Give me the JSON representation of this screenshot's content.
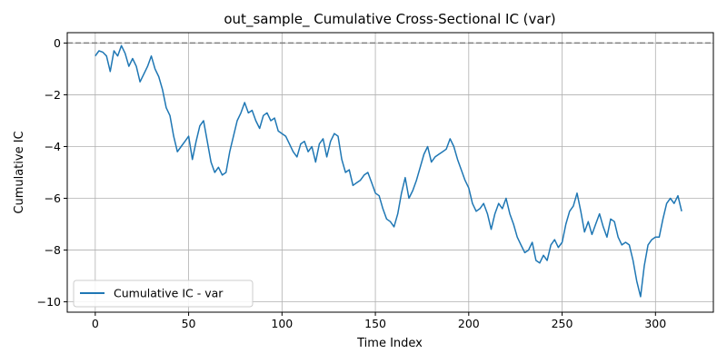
{
  "chart_data": {
    "type": "line",
    "title": "out_sample_ Cumulative Cross-Sectional IC (var)",
    "xlabel": "Time Index",
    "ylabel": "Cumulative IC",
    "xlim": [
      -15,
      331
    ],
    "ylim": [
      -10.4,
      0.4
    ],
    "xticks": [
      0,
      50,
      100,
      150,
      200,
      250,
      300
    ],
    "yticks": [
      0,
      -2,
      -4,
      -6,
      -8,
      -10
    ],
    "grid": true,
    "legend": "lower-left",
    "reference_line": {
      "y": 0,
      "style": "dashed",
      "color": "#808080"
    },
    "series": [
      {
        "name": "Cumulative IC - var",
        "color": "#1f77b4",
        "x": [
          0,
          2,
          4,
          6,
          8,
          10,
          12,
          14,
          16,
          18,
          20,
          22,
          24,
          26,
          28,
          30,
          32,
          34,
          36,
          38,
          40,
          42,
          44,
          46,
          48,
          50,
          52,
          54,
          56,
          58,
          60,
          62,
          64,
          66,
          68,
          70,
          72,
          74,
          76,
          78,
          80,
          82,
          84,
          86,
          88,
          90,
          92,
          94,
          96,
          98,
          100,
          102,
          104,
          106,
          108,
          110,
          112,
          114,
          116,
          118,
          120,
          122,
          124,
          126,
          128,
          130,
          132,
          134,
          136,
          138,
          140,
          142,
          144,
          146,
          148,
          150,
          152,
          154,
          156,
          158,
          160,
          162,
          164,
          166,
          168,
          170,
          172,
          174,
          176,
          178,
          180,
          182,
          184,
          186,
          188,
          190,
          192,
          194,
          196,
          198,
          200,
          202,
          204,
          206,
          208,
          210,
          212,
          214,
          216,
          218,
          220,
          222,
          224,
          226,
          228,
          230,
          232,
          234,
          236,
          238,
          240,
          242,
          244,
          246,
          248,
          250,
          252,
          254,
          256,
          258,
          260,
          262,
          264,
          266,
          268,
          270,
          272,
          274,
          276,
          278,
          280,
          282,
          284,
          286,
          288,
          290,
          292,
          294,
          296,
          298,
          300,
          302,
          304,
          306,
          308,
          310,
          312,
          314
        ],
        "values": [
          -0.5,
          -0.3,
          -0.35,
          -0.5,
          -1.1,
          -0.3,
          -0.5,
          -0.1,
          -0.4,
          -0.9,
          -0.6,
          -0.9,
          -1.5,
          -1.2,
          -0.9,
          -0.5,
          -1.0,
          -1.3,
          -1.8,
          -2.5,
          -2.8,
          -3.6,
          -4.2,
          -4.0,
          -3.8,
          -3.6,
          -4.5,
          -3.8,
          -3.2,
          -3.0,
          -3.8,
          -4.6,
          -5.0,
          -4.8,
          -5.1,
          -5.0,
          -4.2,
          -3.6,
          -3.0,
          -2.7,
          -2.3,
          -2.7,
          -2.6,
          -3.0,
          -3.3,
          -2.8,
          -2.7,
          -3.0,
          -2.9,
          -3.4,
          -3.5,
          -3.6,
          -3.9,
          -4.2,
          -4.4,
          -3.9,
          -3.8,
          -4.2,
          -4.0,
          -4.6,
          -3.9,
          -3.7,
          -4.4,
          -3.8,
          -3.5,
          -3.6,
          -4.5,
          -5.0,
          -4.9,
          -5.5,
          -5.4,
          -5.3,
          -5.1,
          -5.0,
          -5.4,
          -5.8,
          -5.9,
          -6.4,
          -6.8,
          -6.9,
          -7.1,
          -6.6,
          -5.8,
          -5.2,
          -6.0,
          -5.7,
          -5.3,
          -4.8,
          -4.3,
          -4.0,
          -4.6,
          -4.4,
          -4.3,
          -4.2,
          -4.1,
          -3.7,
          -4.0,
          -4.5,
          -4.9,
          -5.3,
          -5.6,
          -6.2,
          -6.5,
          -6.4,
          -6.2,
          -6.6,
          -7.2,
          -6.6,
          -6.2,
          -6.4,
          -6.0,
          -6.6,
          -7.0,
          -7.5,
          -7.8,
          -8.1,
          -8.0,
          -7.7,
          -8.4,
          -8.5,
          -8.2,
          -8.4,
          -7.8,
          -7.6,
          -7.9,
          -7.7,
          -7.0,
          -6.5,
          -6.3,
          -5.8,
          -6.5,
          -7.3,
          -6.9,
          -7.4,
          -7.0,
          -6.6,
          -7.1,
          -7.5,
          -6.8,
          -6.9,
          -7.5,
          -7.8,
          -7.7,
          -7.8,
          -8.4,
          -9.2,
          -9.8,
          -8.6,
          -7.8,
          -7.6,
          -7.5,
          -7.5,
          -6.8,
          -6.2,
          -6.0,
          -6.2,
          -5.9,
          -6.5
        ]
      }
    ]
  }
}
